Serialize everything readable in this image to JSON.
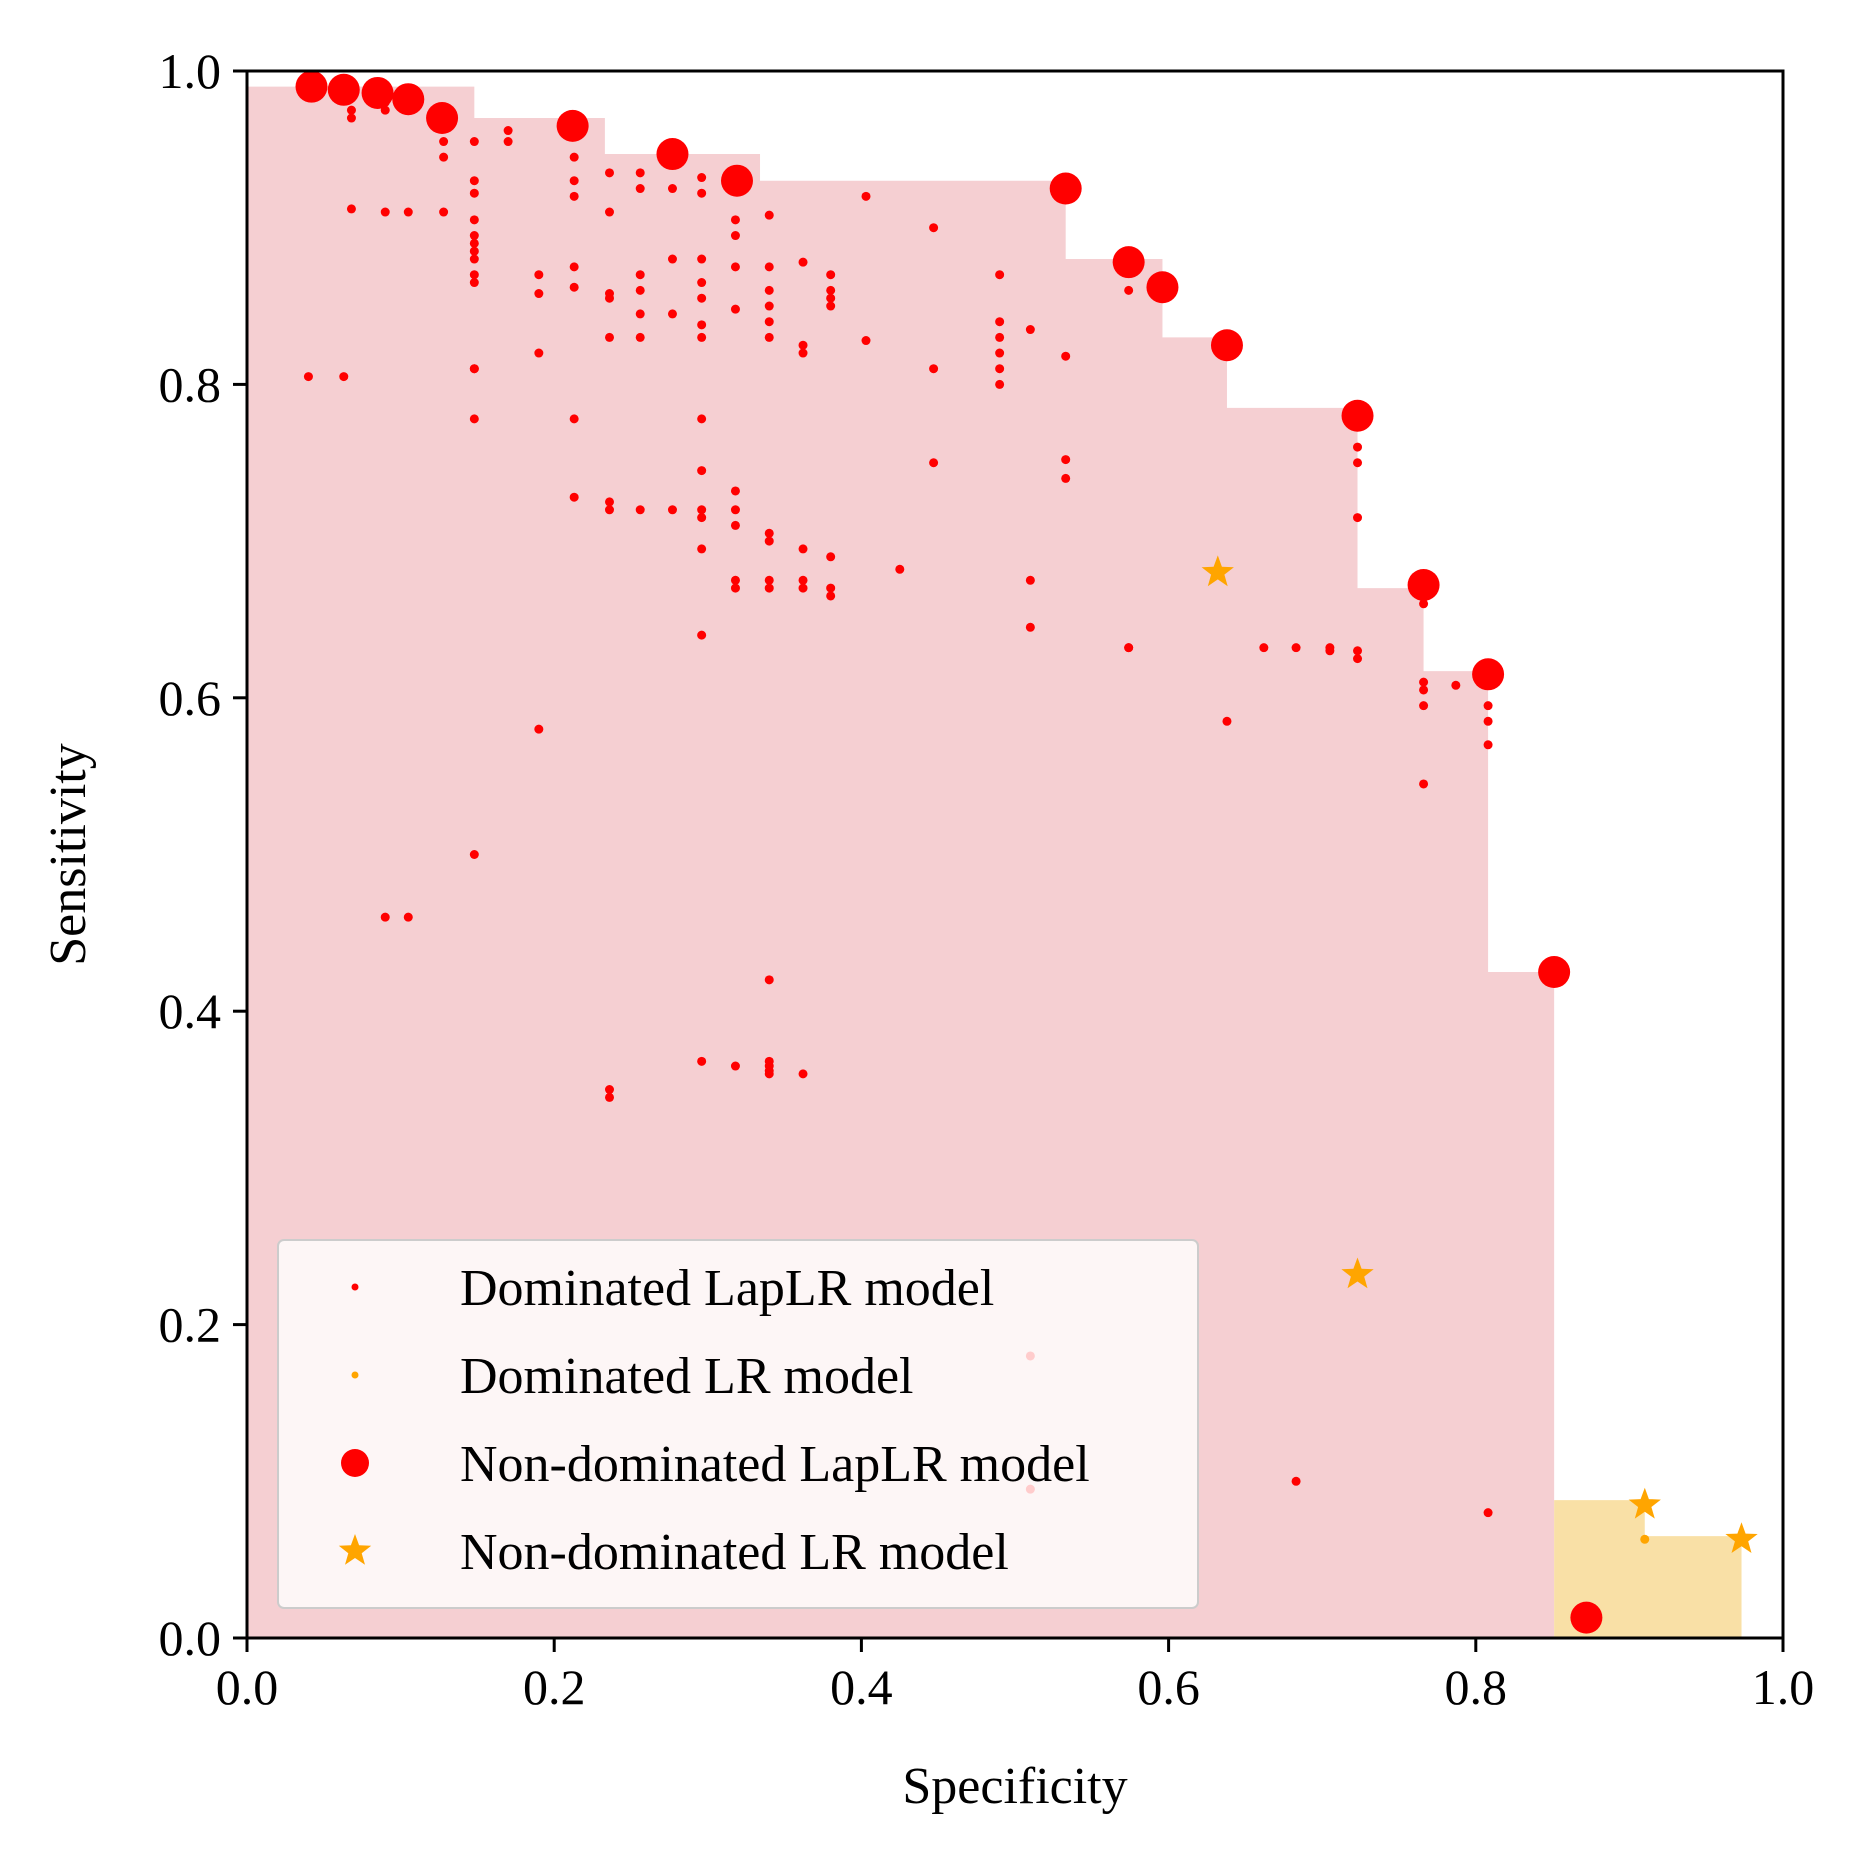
{
  "chart_data": {
    "type": "scatter",
    "xlabel": "Specificity",
    "ylabel": "Sensitivity",
    "xlim": [
      0.0,
      1.0
    ],
    "ylim": [
      0.0,
      1.0
    ],
    "xticks": [
      "0.0",
      "0.2",
      "0.4",
      "0.6",
      "0.8",
      "1.0"
    ],
    "yticks": [
      "0.0",
      "0.2",
      "0.4",
      "0.6",
      "0.8",
      "1.0"
    ],
    "grid": false,
    "legend_position": "lower-left",
    "colors": {
      "laplr": "#ff0000",
      "lr": "#ffa500",
      "laplr_fill": "#f5cfd2",
      "lr_fill": "#f9e0a6"
    },
    "series": [
      {
        "name": "Dominated LapLR model",
        "color": "#ff0000",
        "marker": "small-dot",
        "x": [
          0.068,
          0.068,
          0.068,
          0.09,
          0.09,
          0.09,
          0.105,
          0.105,
          0.128,
          0.128,
          0.128,
          0.128,
          0.148,
          0.148,
          0.148,
          0.148,
          0.148,
          0.148,
          0.148,
          0.148,
          0.148,
          0.148,
          0.148,
          0.148,
          0.17,
          0.17,
          0.19,
          0.19,
          0.19,
          0.213,
          0.213,
          0.213,
          0.213,
          0.213,
          0.213,
          0.213,
          0.236,
          0.236,
          0.236,
          0.236,
          0.236,
          0.236,
          0.236,
          0.256,
          0.256,
          0.256,
          0.256,
          0.256,
          0.256,
          0.256,
          0.277,
          0.277,
          0.277,
          0.277,
          0.296,
          0.296,
          0.296,
          0.296,
          0.296,
          0.296,
          0.296,
          0.296,
          0.296,
          0.296,
          0.296,
          0.296,
          0.296,
          0.318,
          0.318,
          0.318,
          0.318,
          0.318,
          0.318,
          0.318,
          0.318,
          0.318,
          0.318,
          0.34,
          0.34,
          0.34,
          0.34,
          0.34,
          0.34,
          0.34,
          0.34,
          0.34,
          0.34,
          0.34,
          0.34,
          0.34,
          0.362,
          0.362,
          0.362,
          0.362,
          0.362,
          0.362,
          0.38,
          0.38,
          0.38,
          0.38,
          0.38,
          0.38,
          0.38,
          0.403,
          0.403,
          0.425,
          0.447,
          0.447,
          0.447,
          0.49,
          0.49,
          0.49,
          0.49,
          0.49,
          0.49,
          0.51,
          0.51,
          0.51,
          0.533,
          0.533,
          0.533,
          0.574,
          0.574,
          0.662,
          0.683,
          0.705,
          0.705,
          0.723,
          0.723,
          0.723,
          0.723,
          0.723,
          0.766,
          0.766,
          0.766,
          0.766,
          0.766,
          0.787,
          0.808,
          0.808,
          0.808,
          0.808,
          0.04,
          0.063,
          0.148,
          0.148,
          0.09,
          0.105,
          0.34,
          0.296,
          0.318,
          0.34,
          0.362,
          0.236,
          0.236,
          0.19,
          0.638,
          0.574,
          0.683,
          0.808,
          0.51,
          0.51
        ],
        "y": [
          0.975,
          0.97,
          0.912,
          0.98,
          0.975,
          0.91,
          0.975,
          0.91,
          0.965,
          0.955,
          0.945,
          0.91,
          0.955,
          0.93,
          0.905,
          0.895,
          0.89,
          0.885,
          0.88,
          0.87,
          0.81,
          0.778,
          0.922,
          0.865,
          0.962,
          0.955,
          0.87,
          0.858,
          0.82,
          0.945,
          0.93,
          0.92,
          0.875,
          0.862,
          0.778,
          0.728,
          0.935,
          0.91,
          0.858,
          0.855,
          0.725,
          0.72,
          0.83,
          0.935,
          0.925,
          0.87,
          0.86,
          0.845,
          0.72,
          0.83,
          0.925,
          0.88,
          0.845,
          0.72,
          0.932,
          0.922,
          0.865,
          0.855,
          0.838,
          0.778,
          0.745,
          0.72,
          0.715,
          0.695,
          0.83,
          0.64,
          0.88,
          0.925,
          0.905,
          0.895,
          0.875,
          0.848,
          0.732,
          0.72,
          0.71,
          0.675,
          0.67,
          0.908,
          0.875,
          0.86,
          0.85,
          0.84,
          0.83,
          0.705,
          0.7,
          0.675,
          0.67,
          0.42,
          0.368,
          0.365,
          0.878,
          0.825,
          0.82,
          0.695,
          0.675,
          0.67,
          0.87,
          0.86,
          0.85,
          0.69,
          0.67,
          0.665,
          0.855,
          0.92,
          0.828,
          0.682,
          0.9,
          0.81,
          0.75,
          0.87,
          0.84,
          0.83,
          0.82,
          0.81,
          0.8,
          0.835,
          0.675,
          0.645,
          0.818,
          0.752,
          0.74,
          0.86,
          0.632,
          0.632,
          0.632,
          0.632,
          0.63,
          0.76,
          0.75,
          0.715,
          0.63,
          0.625,
          0.66,
          0.61,
          0.605,
          0.595,
          0.545,
          0.608,
          0.595,
          0.585,
          0.57,
          0.08,
          0.805,
          0.805,
          0.81,
          0.5,
          0.46,
          0.46,
          0.36,
          0.368,
          0.365,
          0.362,
          0.36,
          0.345,
          0.35,
          0.58,
          0.585,
          0.632,
          0.1,
          0.62,
          0.18,
          0.095
        ]
      },
      {
        "name": "Dominated LR model",
        "color": "#ffa500",
        "marker": "small-dot",
        "x": [
          0.91
        ],
        "y": [
          0.063
        ]
      },
      {
        "name": "Non-dominated LapLR model",
        "color": "#ff0000",
        "marker": "large-dot",
        "x": [
          0.042,
          0.063,
          0.085,
          0.105,
          0.127,
          0.212,
          0.277,
          0.319,
          0.533,
          0.574,
          0.596,
          0.638,
          0.723,
          0.766,
          0.808,
          0.851,
          0.872
        ],
        "y": [
          0.99,
          0.988,
          0.986,
          0.982,
          0.97,
          0.965,
          0.947,
          0.93,
          0.925,
          0.878,
          0.862,
          0.825,
          0.78,
          0.672,
          0.615,
          0.425,
          0.013
        ]
      },
      {
        "name": "Non-dominated LR model",
        "color": "#ffa500",
        "marker": "star",
        "x": [
          0.632,
          0.723,
          0.91,
          0.973
        ],
        "y": [
          0.68,
          0.232,
          0.085,
          0.063
        ]
      }
    ],
    "regions": [
      {
        "name": "LapLR dominated region",
        "color": "#f5cfd2",
        "step_x": [
          0.0,
          0.0,
          0.148,
          0.148,
          0.233,
          0.233,
          0.334,
          0.334,
          0.533,
          0.533,
          0.596,
          0.596,
          0.638,
          0.638,
          0.723,
          0.723,
          0.766,
          0.766,
          0.808,
          0.808,
          0.851,
          0.851
        ],
        "step_y": [
          0.0,
          0.99,
          0.99,
          0.97,
          0.97,
          0.947,
          0.947,
          0.93,
          0.93,
          0.88,
          0.88,
          0.83,
          0.83,
          0.785,
          0.785,
          0.67,
          0.67,
          0.617,
          0.617,
          0.425,
          0.425,
          0.0
        ]
      },
      {
        "name": "LR dominated region",
        "color": "#f9e0a6",
        "step_x": [
          0.851,
          0.851,
          0.91,
          0.91,
          0.973,
          0.973
        ],
        "step_y": [
          0.0,
          0.088,
          0.088,
          0.065,
          0.065,
          0.0
        ]
      }
    ]
  },
  "legend": {
    "items": [
      {
        "label": "Dominated LapLR model",
        "color": "#ff0000",
        "marker": "small-dot"
      },
      {
        "label": "Dominated LR model",
        "color": "#ffa500",
        "marker": "small-dot"
      },
      {
        "label": "Non-dominated LapLR model",
        "color": "#ff0000",
        "marker": "large-dot"
      },
      {
        "label": "Non-dominated LR model",
        "color": "#ffa500",
        "marker": "star"
      }
    ]
  }
}
